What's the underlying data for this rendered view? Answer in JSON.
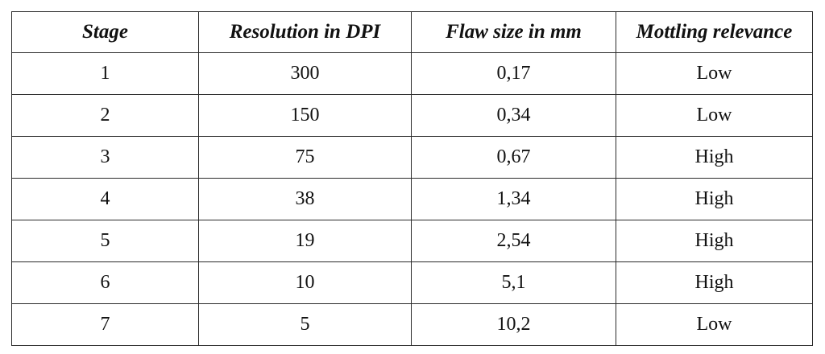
{
  "table": {
    "headers": [
      "Stage",
      "Resolution in DPI",
      "Flaw size in mm",
      "Mottling relevance"
    ],
    "rows": [
      [
        "1",
        "300",
        "0,17",
        "Low"
      ],
      [
        "2",
        "150",
        "0,34",
        "Low"
      ],
      [
        "3",
        "75",
        "0,67",
        "High"
      ],
      [
        "4",
        "38",
        "1,34",
        "High"
      ],
      [
        "5",
        "19",
        "2,54",
        "High"
      ],
      [
        "6",
        "10",
        "5,1",
        "High"
      ],
      [
        "7",
        "5",
        "10,2",
        "Low"
      ]
    ]
  }
}
